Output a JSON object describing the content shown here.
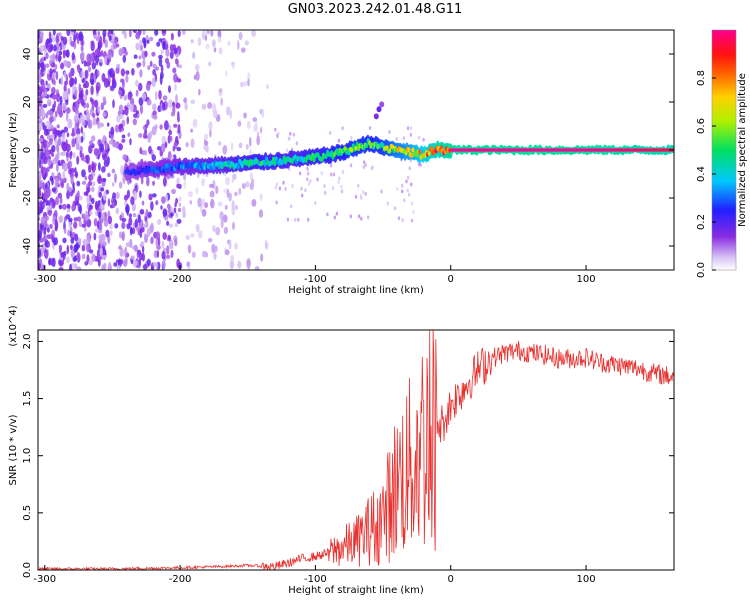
{
  "title": "GN03.2023.242.01.48.G11",
  "chart_data": [
    {
      "type": "heatmap",
      "panel": "top",
      "xlabel": "Height of straight line (km)",
      "ylabel": "Frequency (Hz)",
      "xlim": [
        -305,
        165
      ],
      "ylim": [
        -50,
        50
      ],
      "x_ticks": [
        -300,
        -200,
        -100,
        0,
        100
      ],
      "x_tick_labels": [
        "-300",
        "-200",
        "-100",
        "0",
        "100"
      ],
      "y_ticks": [
        -40,
        -20,
        0,
        20,
        40
      ],
      "y_tick_labels": [
        "-40",
        "-20",
        "0",
        "20",
        "40"
      ],
      "colorbar": {
        "label": "Normalized spectral amplitude",
        "range": [
          0,
          1
        ],
        "ticks": [
          0.0,
          0.2,
          0.4,
          0.6,
          0.8
        ],
        "tick_labels": [
          "0.0",
          "0.2",
          "0.4",
          "0.6",
          "0.8"
        ],
        "colormap": "rainbow (purple-blue-cyan-green-yellow-red-magenta)"
      },
      "ridge": {
        "description": "dominant frequency trace",
        "x": [
          -240,
          -220,
          -200,
          -180,
          -160,
          -140,
          -120,
          -100,
          -80,
          -70,
          -60,
          -50,
          -40,
          -30,
          -20,
          -10,
          0,
          50,
          100,
          165
        ],
        "frequency": [
          -9,
          -8,
          -7,
          -6.5,
          -6,
          -5,
          -4,
          -3,
          -1,
          1,
          3,
          1,
          0,
          -1,
          -2,
          0,
          0,
          0,
          0,
          0
        ],
        "amplitude": [
          0.25,
          0.3,
          0.35,
          0.4,
          0.45,
          0.5,
          0.45,
          0.5,
          0.55,
          0.6,
          0.55,
          0.6,
          0.7,
          0.75,
          0.85,
          0.95,
          1.0,
          1.0,
          1.0,
          0.95
        ]
      },
      "noise_region_x": [
        -305,
        -135
      ]
    },
    {
      "type": "line",
      "panel": "bottom",
      "xlabel": "Height of straight line (km)",
      "ylabel": "SNR (10 * v/v)",
      "y_multiplier": "(x10^4)",
      "xlim": [
        -305,
        165
      ],
      "ylim": [
        0,
        2.1
      ],
      "x_ticks": [
        -300,
        -200,
        -100,
        0,
        100
      ],
      "x_tick_labels": [
        "-300",
        "-200",
        "-100",
        "0",
        "100"
      ],
      "y_ticks": [
        0.0,
        0.5,
        1.0,
        1.5,
        2.0
      ],
      "y_tick_labels": [
        "0.0",
        "0.5",
        "1.0",
        "1.5",
        "2.0"
      ],
      "series": [
        {
          "color": "#e8302e",
          "x": [
            -305,
            -250,
            -200,
            -170,
            -150,
            -130,
            -120,
            -110,
            -100,
            -90,
            -80,
            -70,
            -60,
            -50,
            -45,
            -40,
            -35,
            -30,
            -25,
            -20,
            -15,
            -10,
            -5,
            0,
            10,
            20,
            30,
            40,
            50,
            60,
            70,
            80,
            90,
            100,
            110,
            120,
            130,
            140,
            150,
            165
          ],
          "y": [
            0.01,
            0.01,
            0.02,
            0.03,
            0.04,
            0.03,
            0.06,
            0.1,
            0.12,
            0.15,
            0.2,
            0.25,
            0.35,
            0.45,
            0.6,
            0.75,
            0.85,
            0.9,
            1.0,
            1.15,
            1.2,
            1.25,
            1.3,
            1.45,
            1.6,
            1.75,
            1.85,
            1.9,
            1.92,
            1.9,
            1.88,
            1.85,
            1.85,
            1.86,
            1.82,
            1.8,
            1.78,
            1.76,
            1.72,
            1.69
          ]
        }
      ],
      "grid": false
    }
  ]
}
